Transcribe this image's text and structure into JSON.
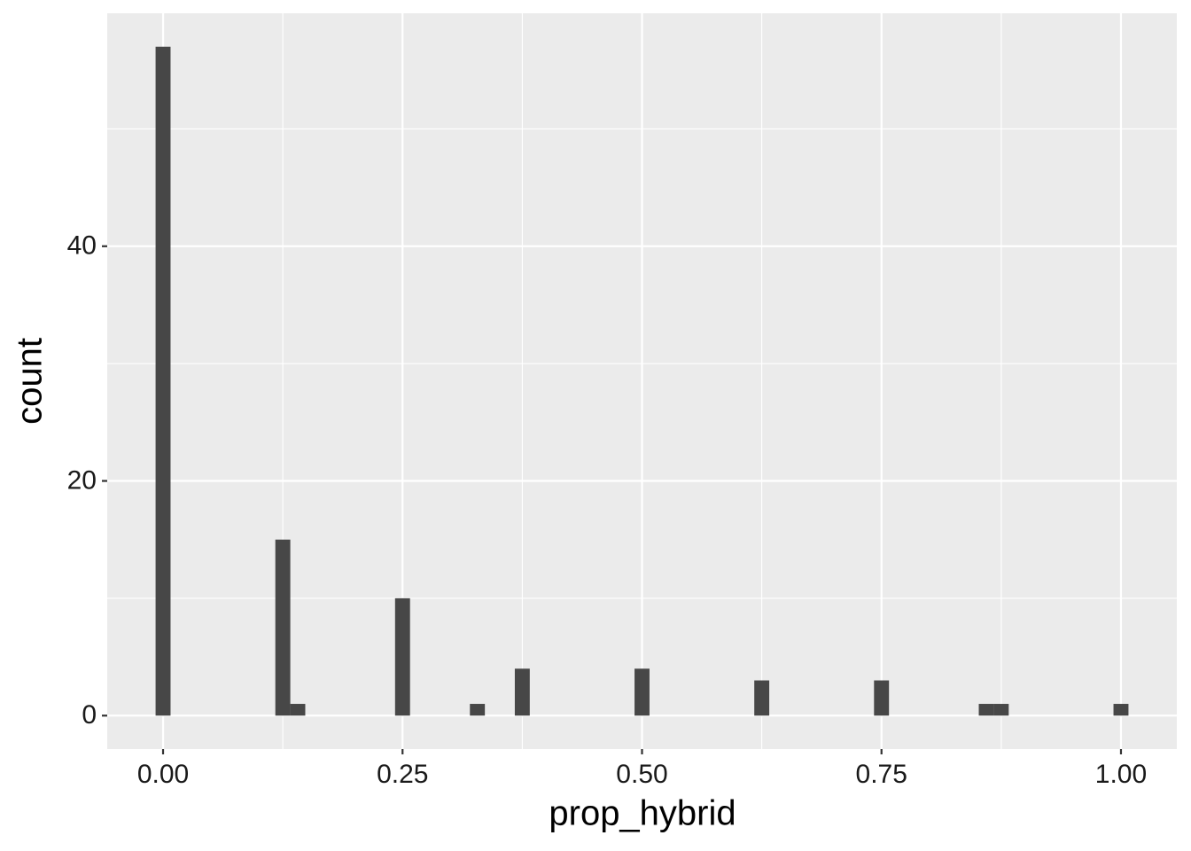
{
  "chart_data": {
    "type": "histogram",
    "x_label": "prop_hybrid",
    "y_label": "count",
    "color": "#474747",
    "background": "#ebebeb",
    "grid": true,
    "bins": [
      -0.0078125,
      0.0078125,
      0.0234375,
      0.0390625,
      0.0546875,
      0.0703125,
      0.0859375,
      0.1015625,
      0.1171875,
      0.1328125,
      0.1484375,
      0.1640625,
      0.1796875,
      0.1953125,
      0.2109375,
      0.2265625,
      0.2421875,
      0.2578125,
      0.2734375,
      0.2890625,
      0.3046875,
      0.3203125,
      0.3359375,
      0.3515625,
      0.3671875,
      0.3828125,
      0.3984375,
      0.4140625,
      0.4296875,
      0.4453125,
      0.4609375,
      0.4765625,
      0.4921875,
      0.5078125,
      0.5234375,
      0.5390625,
      0.5546875,
      0.5703125,
      0.5859375,
      0.6015625,
      0.6171875,
      0.6328125,
      0.6484375,
      0.6640625,
      0.6796875,
      0.6953125,
      0.7109375,
      0.7265625,
      0.7421875,
      0.7578125,
      0.7734375,
      0.7890625,
      0.8046875,
      0.8203125,
      0.8359375,
      0.8515625,
      0.8671875,
      0.8828125,
      0.8984375,
      0.9140625,
      0.9296875,
      0.9453125,
      0.9609375,
      0.9765625,
      0.9921875,
      1.0078125
    ],
    "values": [
      57,
      0,
      0,
      0,
      0,
      0,
      0,
      0,
      15,
      1,
      0,
      0,
      0,
      0,
      0,
      0,
      10,
      0,
      0,
      0,
      0,
      1,
      0,
      0,
      4,
      0,
      0,
      0,
      0,
      0,
      0,
      0,
      4,
      0,
      0,
      0,
      0,
      0,
      0,
      0,
      3,
      0,
      0,
      0,
      0,
      0,
      0,
      0,
      3,
      0,
      0,
      0,
      0,
      0,
      0,
      1,
      1,
      0,
      0,
      0,
      0,
      0,
      0,
      0,
      1
    ],
    "xlim": [
      -0.0583,
      1.0583
    ],
    "ylim": [
      -2.85,
      59.85
    ],
    "xticks": [
      {
        "value": 0,
        "label": "0.00"
      },
      {
        "value": 0.25,
        "label": "0.25"
      },
      {
        "value": 0.5,
        "label": "0.50"
      },
      {
        "value": 0.75,
        "label": "0.75"
      },
      {
        "value": 1,
        "label": "1.00"
      }
    ],
    "yticks": [
      0,
      20,
      40
    ],
    "x_minor_grid": [
      0.125,
      0.375,
      0.625,
      0.875
    ],
    "y_minor_grid": [
      10,
      30,
      50
    ]
  }
}
